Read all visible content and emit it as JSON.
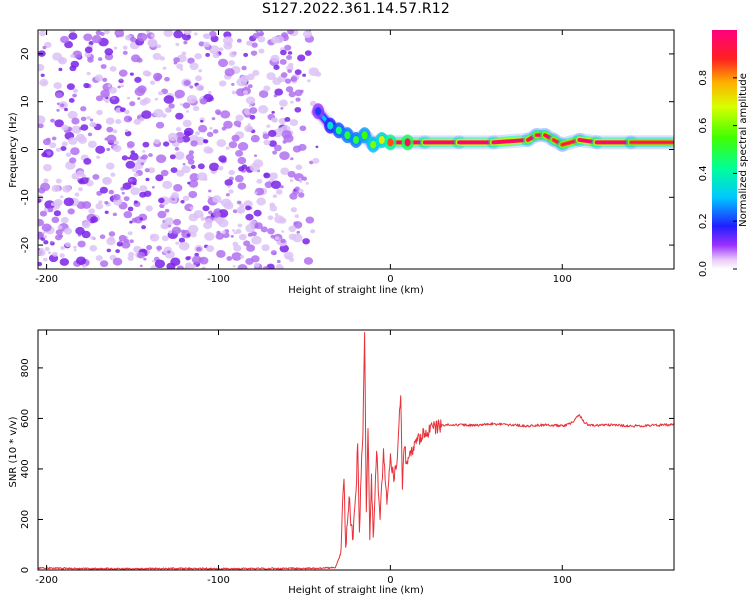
{
  "title": "S127.2022.361.14.57.R12",
  "colors": {
    "snr_line": "#e8323a",
    "noise": "#8a2be2",
    "ridge_core": "#ff2a2a"
  },
  "chart_data": [
    {
      "type": "heatmap",
      "title": "S127.2022.361.14.57.R12",
      "xlabel": "Height of straight line (km)",
      "ylabel": "Frequency (Hz)",
      "xlim": [
        -205,
        165
      ],
      "ylim": [
        -25,
        25
      ],
      "x_ticks": [
        -200,
        -100,
        0,
        100
      ],
      "x_tick_labels": [
        "-200",
        "-100",
        "0",
        "100"
      ],
      "y_ticks": [
        -20,
        -10,
        0,
        10,
        20
      ],
      "y_tick_labels": [
        "-20",
        "-10",
        "0",
        "10",
        "20"
      ],
      "colorbar": {
        "label": "Normalized spectral amplitude",
        "range": [
          0,
          1
        ],
        "ticks": [
          0.0,
          0.2,
          0.4,
          0.6,
          0.8
        ],
        "tick_labels": [
          "0.0",
          "0.2",
          "0.4",
          "0.6",
          "0.8"
        ],
        "colormap": "hsv"
      },
      "regions": [
        {
          "x_range": [
            -205,
            -42
          ],
          "content": "diffuse low-amplitude noise across all frequencies"
        },
        {
          "x_range": [
            -42,
            165
          ],
          "content": "narrow band near 1.5 Hz"
        }
      ],
      "ridge": {
        "x": [
          -42,
          -35,
          -30,
          -25,
          -20,
          -15,
          -10,
          -5,
          0,
          10,
          20,
          40,
          60,
          80,
          85,
          90,
          95,
          100,
          110,
          120,
          140,
          165
        ],
        "y": [
          8,
          5,
          4,
          3,
          2,
          3,
          1,
          2,
          1.5,
          1.5,
          1.5,
          1.5,
          1.5,
          2,
          3,
          3,
          2,
          1,
          2,
          1.5,
          1.5,
          1.5
        ],
        "amplitude": [
          0.2,
          0.35,
          0.45,
          0.5,
          0.5,
          0.55,
          0.6,
          0.7,
          0.85,
          0.95,
          0.9,
          0.95,
          0.95,
          0.9,
          0.85,
          0.85,
          0.9,
          0.8,
          0.9,
          0.95,
          0.9,
          0.8
        ]
      }
    },
    {
      "type": "line",
      "xlabel": "Height of straight line (km)",
      "ylabel": "SNR (10 * v/v)",
      "xlim": [
        -205,
        165
      ],
      "ylim": [
        0,
        950
      ],
      "x_ticks": [
        -200,
        -100,
        0,
        100
      ],
      "x_tick_labels": [
        "-200",
        "-100",
        "0",
        "100"
      ],
      "y_ticks": [
        0,
        200,
        400,
        600,
        800
      ],
      "y_tick_labels": [
        "0",
        "200",
        "400",
        "600",
        "800"
      ],
      "series": [
        {
          "x": [
            -205,
            -180,
            -150,
            -120,
            -90,
            -60,
            -40,
            -32,
            -29,
            -27,
            -26,
            -24,
            -22,
            -20,
            -19,
            -18,
            -17,
            -16,
            -15,
            -14,
            -13,
            -12,
            -11,
            -10,
            -8,
            -6,
            -4,
            -2,
            0,
            2,
            4,
            6,
            7,
            8,
            10,
            15,
            20,
            25,
            30,
            40,
            50,
            60,
            70,
            80,
            90,
            100,
            105,
            110,
            112,
            115,
            120,
            130,
            140,
            150,
            165
          ],
          "y": [
            8,
            6,
            5,
            6,
            5,
            6,
            7,
            10,
            60,
            360,
            90,
            290,
            120,
            310,
            500,
            150,
            380,
            530,
            940,
            230,
            560,
            120,
            380,
            130,
            470,
            200,
            480,
            260,
            460,
            350,
            440,
            690,
            320,
            480,
            420,
            500,
            540,
            560,
            575,
            575,
            572,
            578,
            575,
            570,
            575,
            570,
            580,
            615,
            590,
            575,
            572,
            575,
            570,
            572,
            575
          ]
        }
      ]
    }
  ]
}
